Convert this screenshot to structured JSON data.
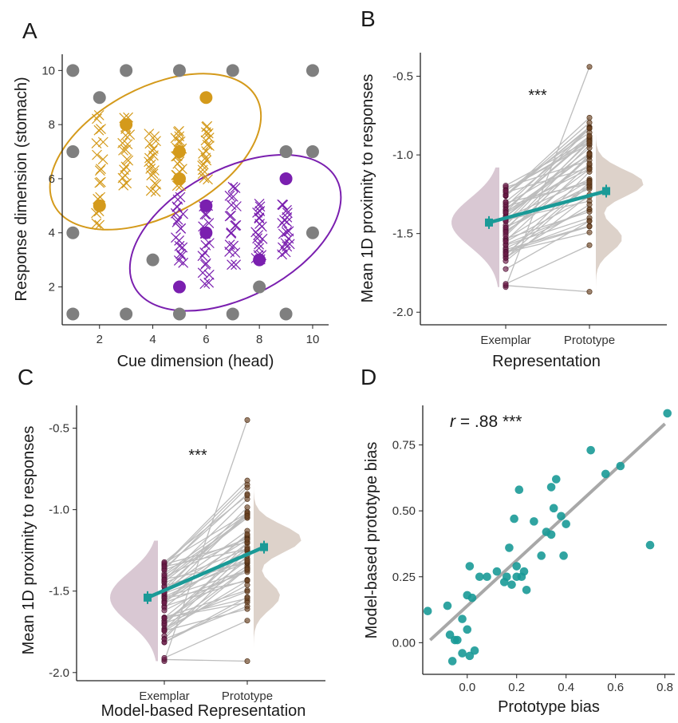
{
  "panels": {
    "a": {
      "letter": "A"
    },
    "b": {
      "letter": "B"
    },
    "c": {
      "letter": "C"
    },
    "d": {
      "letter": "D"
    }
  },
  "colors": {
    "orange": "#D49A1B",
    "purple": "#7A1FAF",
    "grey_points": "#7f7f7f",
    "exemplar_violin": "#D9C8D3",
    "prototype_violin": "#DDD2CA",
    "exemplar_point": "#6B1C48",
    "prototype_point": "#6B4423",
    "teal": "#1A9A97",
    "line_grey": "#bdbdbd"
  },
  "chart_data": [
    {
      "id": "A",
      "type": "scatter",
      "xlabel": "Cue dimension (head)",
      "ylabel": "Response dimension (stomach)",
      "xlim": [
        0.6,
        10.6
      ],
      "ylim": [
        0.6,
        10.6
      ],
      "xticks": [
        2,
        4,
        6,
        8,
        10
      ],
      "yticks": [
        2,
        4,
        6,
        8,
        10
      ],
      "grey_points": [
        [
          1,
          1
        ],
        [
          3,
          1
        ],
        [
          5,
          1
        ],
        [
          7,
          1
        ],
        [
          9,
          1
        ],
        [
          1,
          4
        ],
        [
          10,
          4
        ],
        [
          1,
          7
        ],
        [
          10,
          7
        ],
        [
          1,
          10
        ],
        [
          3,
          10
        ],
        [
          5,
          10
        ],
        [
          7,
          10
        ],
        [
          10,
          10
        ],
        [
          2,
          9
        ],
        [
          4,
          3
        ],
        [
          8,
          2
        ],
        [
          9,
          7
        ]
      ],
      "orange_circles": [
        [
          2,
          5
        ],
        [
          3,
          8
        ],
        [
          5,
          6
        ],
        [
          5,
          7
        ],
        [
          6,
          9
        ]
      ],
      "orange_crosses": [
        [
          2,
          4.3,
          8.3
        ],
        [
          3,
          5.8,
          8.2
        ],
        [
          4,
          5.6,
          7.6
        ],
        [
          5,
          5.8,
          7.8
        ],
        [
          6,
          6.0,
          8.0
        ]
      ],
      "purple_circles": [
        [
          5,
          2
        ],
        [
          6,
          5
        ],
        [
          6,
          4
        ],
        [
          8,
          3
        ],
        [
          9,
          6
        ]
      ],
      "purple_crosses": [
        [
          5,
          2.9,
          5.3
        ],
        [
          6,
          2.1,
          5.0
        ],
        [
          7,
          2.9,
          5.7
        ],
        [
          8,
          3.0,
          5.0
        ],
        [
          9,
          3.2,
          5.0
        ]
      ],
      "orange_ellipse": {
        "cx": 4.1,
        "cy": 7.0,
        "rx": 4.3,
        "ry": 2.4,
        "angle_deg": -28
      },
      "purple_ellipse": {
        "cx": 7.1,
        "cy": 4.0,
        "rx": 4.3,
        "ry": 2.4,
        "angle_deg": -28
      }
    },
    {
      "id": "B",
      "type": "raincloud",
      "xlabel": "Representation",
      "ylabel": "Mean 1D proximity to responses",
      "categories": [
        "Exemplar",
        "Prototype"
      ],
      "ylim": [
        -2.08,
        -0.35
      ],
      "yticks": [
        -2.0,
        -1.5,
        -1.0,
        -0.5
      ],
      "ytick_labels": [
        "-2.0",
        "-1.5",
        "-1.0",
        "-0.5"
      ],
      "means": [
        -1.43,
        -1.23
      ],
      "significance": "***",
      "exemplar_range": [
        -1.84,
        -1.08
      ],
      "prototype_range": [
        -1.87,
        -0.44
      ]
    },
    {
      "id": "C",
      "type": "raincloud",
      "xlabel": "Model-based Representation",
      "ylabel": "Mean 1D proximity to responses",
      "categories": [
        "Exemplar",
        "Prototype"
      ],
      "ylim": [
        -2.05,
        -0.36
      ],
      "yticks": [
        -2.0,
        -1.5,
        -1.0,
        -0.5
      ],
      "ytick_labels": [
        "-2.0",
        "-1.5",
        "-1.0",
        "-0.5"
      ],
      "means": [
        -1.54,
        -1.23
      ],
      "significance": "***",
      "exemplar_range": [
        -1.93,
        -1.19
      ],
      "prototype_range": [
        -1.93,
        -0.45
      ]
    },
    {
      "id": "D",
      "type": "scatter",
      "xlabel": "Prototype bias",
      "ylabel": "Model-based prototype bias",
      "annotation_r": "r",
      "annotation_rest": " = .88 ***",
      "xlim": [
        -0.18,
        0.84
      ],
      "ylim": [
        -0.12,
        0.9
      ],
      "xticks": [
        0.0,
        0.2,
        0.4,
        0.6,
        0.8
      ],
      "xtick_labels": [
        "0.0",
        "0.2",
        "0.4",
        "0.6",
        "0.8"
      ],
      "yticks": [
        0.0,
        0.25,
        0.5,
        0.75
      ],
      "ytick_labels": [
        "0.00",
        "0.25",
        "0.50",
        "0.75"
      ],
      "fit_line": [
        [
          -0.15,
          0.01
        ],
        [
          0.8,
          0.83
        ]
      ],
      "points": [
        [
          -0.16,
          0.12
        ],
        [
          -0.08,
          0.14
        ],
        [
          -0.07,
          0.03
        ],
        [
          -0.06,
          -0.07
        ],
        [
          -0.05,
          0.01
        ],
        [
          -0.04,
          0.01
        ],
        [
          -0.02,
          -0.04
        ],
        [
          -0.02,
          0.09
        ],
        [
          0.0,
          0.18
        ],
        [
          0.0,
          0.05
        ],
        [
          0.01,
          0.29
        ],
        [
          0.01,
          -0.05
        ],
        [
          0.02,
          0.17
        ],
        [
          0.03,
          -0.03
        ],
        [
          0.05,
          0.25
        ],
        [
          0.08,
          0.25
        ],
        [
          0.12,
          0.27
        ],
        [
          0.15,
          0.23
        ],
        [
          0.16,
          0.25
        ],
        [
          0.17,
          0.36
        ],
        [
          0.18,
          0.22
        ],
        [
          0.19,
          0.47
        ],
        [
          0.2,
          0.25
        ],
        [
          0.2,
          0.29
        ],
        [
          0.21,
          0.58
        ],
        [
          0.22,
          0.25
        ],
        [
          0.23,
          0.27
        ],
        [
          0.24,
          0.2
        ],
        [
          0.27,
          0.46
        ],
        [
          0.3,
          0.33
        ],
        [
          0.32,
          0.42
        ],
        [
          0.34,
          0.59
        ],
        [
          0.34,
          0.41
        ],
        [
          0.35,
          0.51
        ],
        [
          0.36,
          0.62
        ],
        [
          0.38,
          0.48
        ],
        [
          0.39,
          0.33
        ],
        [
          0.4,
          0.45
        ],
        [
          0.5,
          0.73
        ],
        [
          0.56,
          0.64
        ],
        [
          0.62,
          0.67
        ],
        [
          0.74,
          0.37
        ],
        [
          0.81,
          0.87
        ]
      ]
    }
  ]
}
